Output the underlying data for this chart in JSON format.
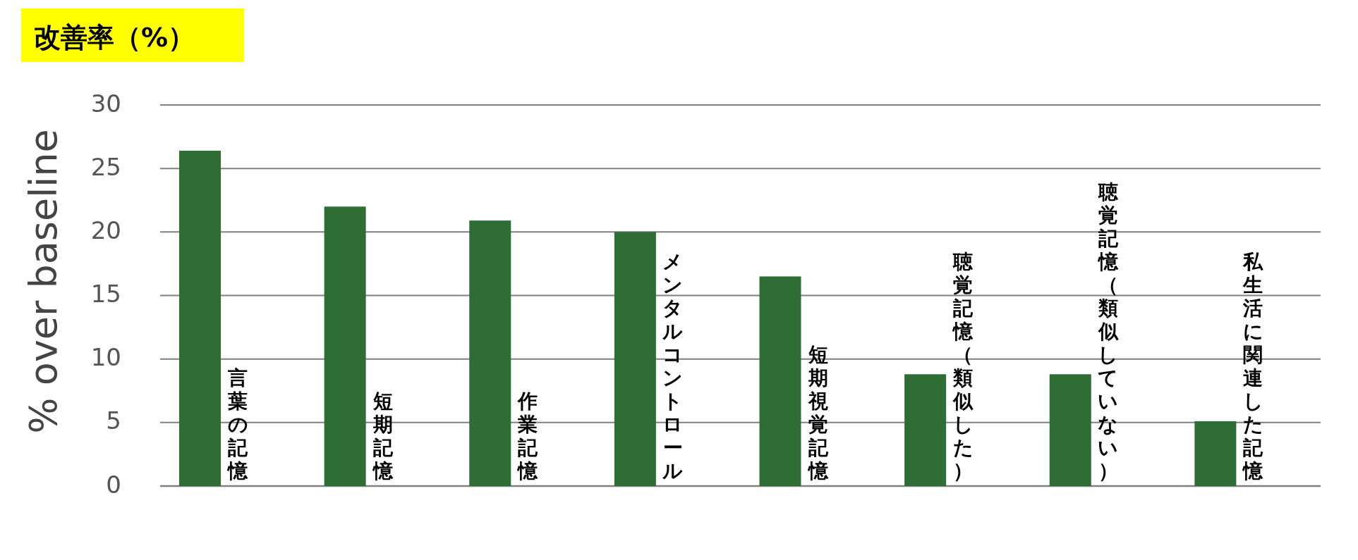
{
  "chart_data": {
    "type": "bar",
    "title": "改善率（%）",
    "ylabel": "% over baseline",
    "categories": [
      "言葉の記憶",
      "短期記憶",
      "作業記憶",
      "メンタルコントロール",
      "短期視覚記憶",
      "聴覚記憶（類似した）",
      "聴覚記憶（類似していない）",
      "私生活に関連した記憶"
    ],
    "values": [
      26.4,
      22.0,
      20.9,
      20.0,
      16.5,
      8.8,
      8.8,
      5.1
    ],
    "color": "#2e6e35",
    "ylim": [
      0,
      30
    ],
    "yticks": [
      0,
      5,
      10,
      15,
      20,
      25,
      30
    ],
    "grid": "y"
  }
}
